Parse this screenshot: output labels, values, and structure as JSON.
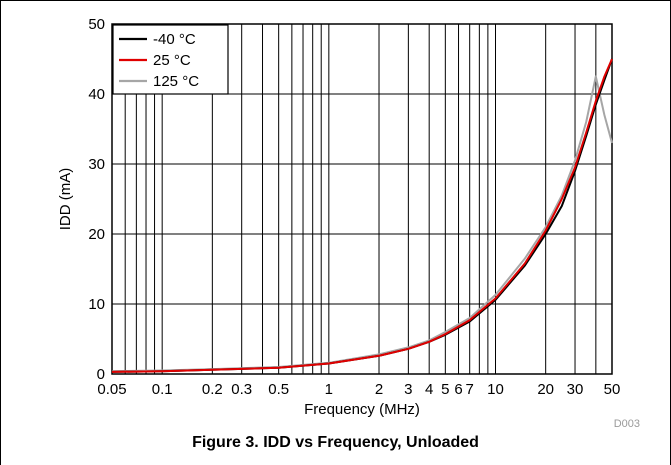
{
  "chart_data": {
    "type": "line",
    "title": "",
    "xlabel": "Frequency (MHz)",
    "ylabel": "IDD (mA)",
    "xscale": "log",
    "xlim": [
      0.05,
      50
    ],
    "ylim": [
      0,
      50
    ],
    "grid": true,
    "legend_position": "top-left",
    "x_ticks": [
      0.05,
      0.1,
      0.2,
      0.3,
      0.5,
      1,
      2,
      3,
      4,
      5,
      6,
      7,
      10,
      20,
      30,
      50
    ],
    "x_tick_labels": [
      "0.05",
      "0.1",
      "0.2",
      "0.3",
      "0.5",
      "1",
      "2",
      "3",
      "4",
      "5",
      "6",
      "7",
      "10",
      "20",
      "30",
      "50"
    ],
    "y_ticks": [
      0,
      10,
      20,
      30,
      40,
      50
    ],
    "y_tick_labels": [
      "0",
      "10",
      "20",
      "30",
      "40",
      "50"
    ],
    "series": [
      {
        "name": "-40 °C",
        "color": "#000000",
        "x": [
          0.05,
          0.1,
          0.2,
          0.5,
          1,
          2,
          3,
          4,
          5,
          7,
          10,
          15,
          20,
          25,
          30,
          35,
          40,
          45,
          50
        ],
        "y": [
          0.3,
          0.4,
          0.6,
          0.9,
          1.5,
          2.6,
          3.6,
          4.6,
          5.6,
          7.5,
          10.6,
          15.5,
          20,
          24,
          29,
          34,
          38.5,
          42,
          45
        ]
      },
      {
        "name": "25 °C",
        "color": "#e00000",
        "x": [
          0.05,
          0.1,
          0.2,
          0.5,
          1,
          2,
          3,
          4,
          5,
          7,
          10,
          15,
          20,
          25,
          30,
          35,
          40,
          45,
          50
        ],
        "y": [
          0.3,
          0.4,
          0.6,
          0.9,
          1.5,
          2.6,
          3.6,
          4.6,
          5.7,
          7.7,
          10.8,
          15.8,
          20.5,
          25,
          29.5,
          34.5,
          39,
          42.5,
          45
        ]
      },
      {
        "name": "125 °C",
        "color": "#a6a6a6",
        "x": [
          0.05,
          0.1,
          0.2,
          0.5,
          1,
          2,
          3,
          4,
          5,
          7,
          10,
          15,
          20,
          25,
          30,
          35,
          40,
          45,
          50
        ],
        "y": [
          0.4,
          0.5,
          0.7,
          1,
          1.6,
          2.8,
          3.8,
          4.8,
          6,
          8,
          11.3,
          16.5,
          21,
          25.5,
          30.5,
          36,
          42.5,
          37,
          33
        ]
      }
    ],
    "figure_code": "D003"
  },
  "caption": "Figure 3.  IDD vs Frequency, Unloaded"
}
